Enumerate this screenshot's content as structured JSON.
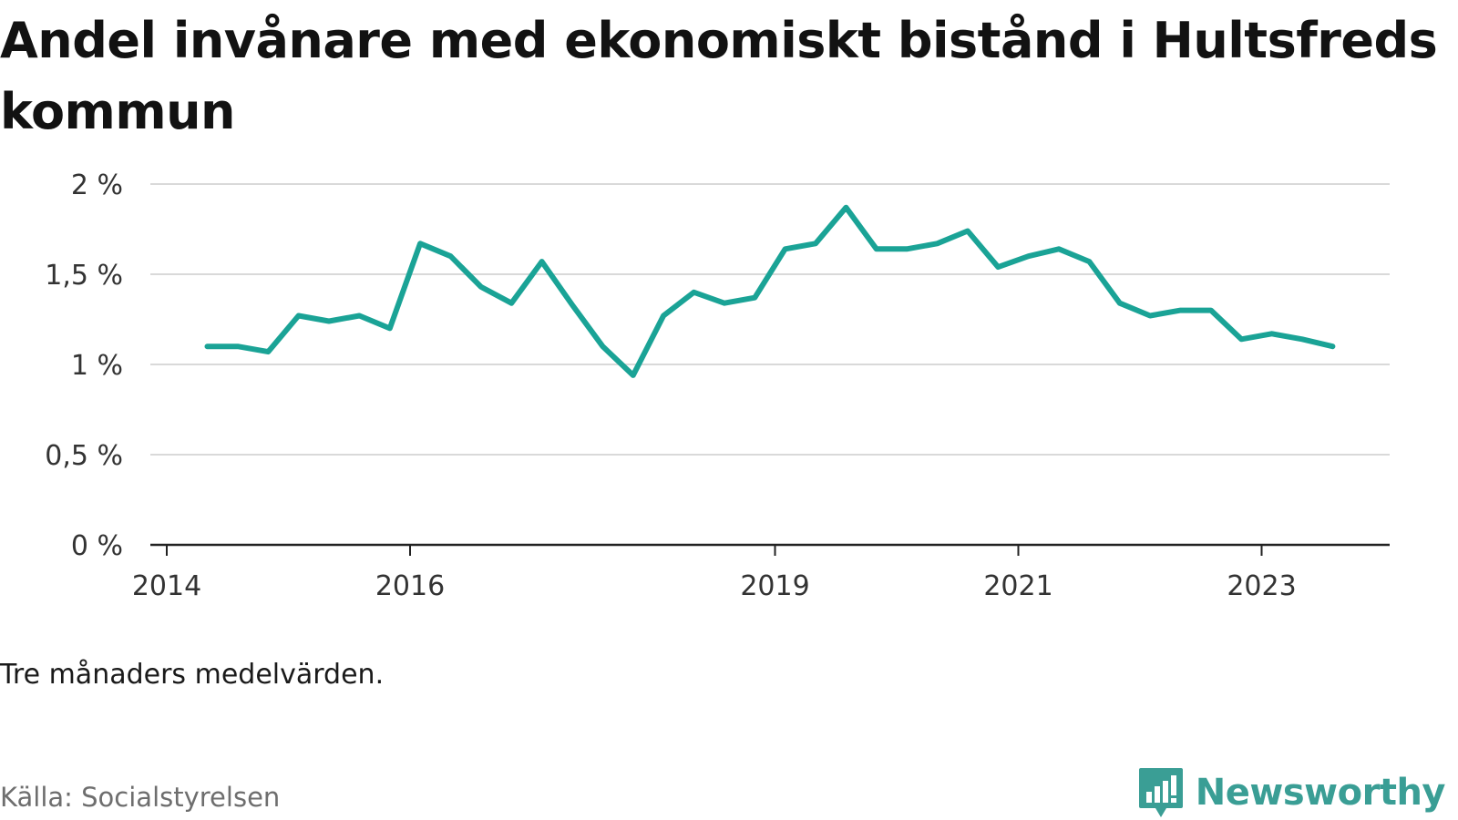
{
  "chart_data": {
    "type": "line",
    "title": "Andel invånare med ekonomiskt bistånd i Hultsfreds kommun",
    "xlabel": "",
    "ylabel": "",
    "ylim": [
      0,
      2
    ],
    "y_ticks": [
      0,
      0.5,
      1,
      1.5,
      2
    ],
    "y_tick_labels": [
      "0 %",
      "0,5 %",
      "1 %",
      "1,5 %",
      "2 %"
    ],
    "x_ticks": [
      "2014",
      "2016",
      "2019",
      "2021",
      "2023"
    ],
    "grid": true,
    "color": "#1aa396",
    "series": [
      {
        "x": [
          "2014-05",
          "2014-08",
          "2014-11",
          "2015-02",
          "2015-05",
          "2015-08",
          "2015-11",
          "2016-02",
          "2016-05",
          "2016-08",
          "2016-11",
          "2017-02",
          "2017-05",
          "2017-08",
          "2017-11",
          "2018-02",
          "2018-05",
          "2018-08",
          "2018-11",
          "2019-02",
          "2019-05",
          "2019-08",
          "2019-11",
          "2020-02",
          "2020-05",
          "2020-08",
          "2020-11",
          "2021-02",
          "2021-05",
          "2021-08",
          "2021-11",
          "2022-02",
          "2022-05",
          "2022-08",
          "2022-11",
          "2023-02",
          "2023-05",
          "2023-08"
        ],
        "values": [
          1.1,
          1.1,
          1.07,
          1.27,
          1.24,
          1.27,
          1.2,
          1.67,
          1.6,
          1.43,
          1.34,
          1.57,
          1.33,
          1.1,
          0.94,
          1.27,
          1.4,
          1.34,
          1.37,
          1.64,
          1.67,
          1.87,
          1.64,
          1.64,
          1.67,
          1.74,
          1.54,
          1.6,
          1.64,
          1.57,
          1.34,
          1.27,
          1.3,
          1.3,
          1.14,
          1.17,
          1.14,
          1.1
        ]
      }
    ]
  },
  "note": "Tre månaders medelvärden.",
  "source": "Källa: Socialstyrelsen",
  "brand": {
    "name": "Newsworthy",
    "icon": "newsworthy-logo-icon",
    "color": "#3a9e95"
  }
}
